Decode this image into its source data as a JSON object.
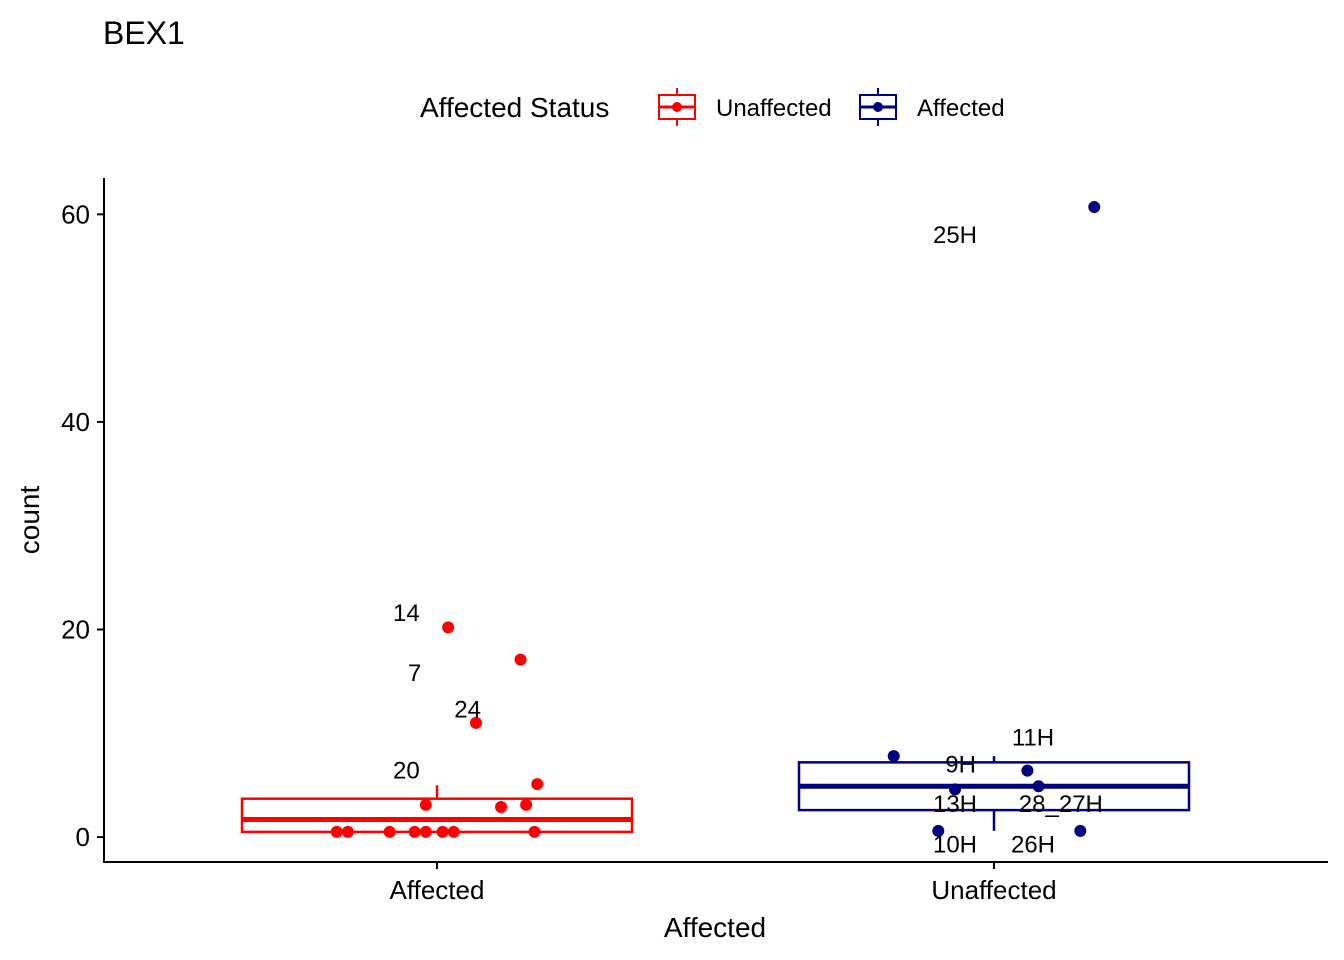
{
  "chart_data": {
    "type": "box",
    "title": "BEX1",
    "xlabel": "Affected",
    "ylabel": "count",
    "ylim": [
      -2.4,
      63.5
    ],
    "yticks": [
      0,
      20,
      40,
      60
    ],
    "categories": [
      "Affected",
      "Unaffected"
    ],
    "legend": {
      "title": "Affected Status",
      "position": "top",
      "entries": [
        {
          "label": "Unaffected",
          "color": "#ff0000"
        },
        {
          "label": "Affected",
          "color": "#000080"
        }
      ]
    },
    "grid": false,
    "boxes": [
      {
        "category": "Affected",
        "color": "#ff0000",
        "q1": 0.5,
        "median": 1.7,
        "q3": 3.7,
        "whisker_low": 0.5,
        "whisker_high": 5.0
      },
      {
        "category": "Unaffected",
        "color": "#000080",
        "q1": 2.6,
        "median": 4.9,
        "q3": 7.2,
        "whisker_low": 0.6,
        "whisker_high": 7.8
      }
    ],
    "points": [
      {
        "category": "Affected",
        "jitter": 0.02,
        "y": 20.2
      },
      {
        "category": "Affected",
        "jitter": 0.15,
        "y": 17.1
      },
      {
        "category": "Affected",
        "jitter": 0.07,
        "y": 11.0
      },
      {
        "category": "Affected",
        "jitter": 0.18,
        "y": 5.1
      },
      {
        "category": "Affected",
        "jitter": -0.02,
        "y": 3.1
      },
      {
        "category": "Affected",
        "jitter": 0.115,
        "y": 2.9
      },
      {
        "category": "Affected",
        "jitter": 0.16,
        "y": 3.1
      },
      {
        "category": "Affected",
        "jitter": -0.18,
        "y": 0.5
      },
      {
        "category": "Affected",
        "jitter": -0.16,
        "y": 0.5
      },
      {
        "category": "Affected",
        "jitter": -0.085,
        "y": 0.5
      },
      {
        "category": "Affected",
        "jitter": -0.04,
        "y": 0.5
      },
      {
        "category": "Affected",
        "jitter": -0.02,
        "y": 0.5
      },
      {
        "category": "Affected",
        "jitter": 0.01,
        "y": 0.5
      },
      {
        "category": "Affected",
        "jitter": 0.03,
        "y": 0.5
      },
      {
        "category": "Affected",
        "jitter": 0.175,
        "y": 0.5
      },
      {
        "category": "Unaffected",
        "jitter": 0.18,
        "y": 60.7
      },
      {
        "category": "Unaffected",
        "jitter": -0.18,
        "y": 7.8
      },
      {
        "category": "Unaffected",
        "jitter": 0.06,
        "y": 6.4
      },
      {
        "category": "Unaffected",
        "jitter": -0.07,
        "y": 4.6
      },
      {
        "category": "Unaffected",
        "jitter": 0.08,
        "y": 4.9
      },
      {
        "category": "Unaffected",
        "jitter": -0.1,
        "y": 0.6
      },
      {
        "category": "Unaffected",
        "jitter": 0.155,
        "y": 0.6
      }
    ],
    "annotations": [
      {
        "text": "14",
        "category": "Affected",
        "dx": -0.055,
        "y": 21.7
      },
      {
        "text": "7",
        "category": "Affected",
        "dx": -0.04,
        "y": 15.9
      },
      {
        "text": "24",
        "category": "Affected",
        "dx": 0.055,
        "y": 12.4
      },
      {
        "text": "20",
        "category": "Affected",
        "dx": -0.055,
        "y": 6.5
      },
      {
        "text": "25H",
        "category": "Unaffected",
        "dx": -0.07,
        "y": 58.1
      },
      {
        "text": "11H",
        "category": "Unaffected",
        "dx": 0.07,
        "y": 9.7
      },
      {
        "text": "9H",
        "category": "Unaffected",
        "dx": -0.06,
        "y": 7.1
      },
      {
        "text": "13H",
        "category": "Unaffected",
        "dx": -0.07,
        "y": 3.3
      },
      {
        "text": "28_27H",
        "category": "Unaffected",
        "dx": 0.12,
        "y": 3.3
      },
      {
        "text": "10H",
        "category": "Unaffected",
        "dx": -0.07,
        "y": -0.6
      },
      {
        "text": "26H",
        "category": "Unaffected",
        "dx": 0.07,
        "y": -0.6
      }
    ]
  }
}
